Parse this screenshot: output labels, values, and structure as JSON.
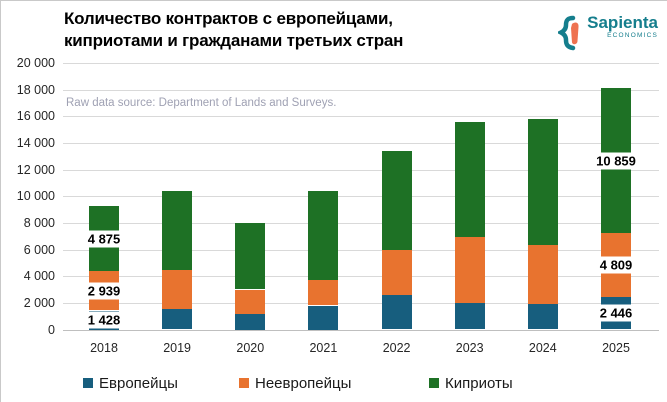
{
  "title": {
    "line1": "Количество контрактов с европейцами,",
    "line2": "киприотами и гражданами третьих стран"
  },
  "logo": {
    "name": "Sapienta",
    "subtitle": "ECONOMICS",
    "teal": "#157E8D",
    "orange": "#EE7250"
  },
  "source_note": "Raw data source: Department of Lands and Surveys.",
  "chart_data": {
    "type": "bar",
    "stacked": true,
    "title": "Количество контрактов с европейцами, киприотами и гражданами третьих стран",
    "categories": [
      "2018",
      "2019",
      "2020",
      "2021",
      "2022",
      "2023",
      "2024",
      "2025"
    ],
    "series": [
      {
        "name": "Европейцы",
        "color": "#175E7E",
        "values": [
          1428,
          1550,
          1200,
          1800,
          2600,
          2000,
          1900,
          2446
        ]
      },
      {
        "name": "Неевропейцы",
        "color": "#E8732F",
        "values": [
          2939,
          2900,
          1800,
          1900,
          3350,
          4925,
          4425,
          4809
        ]
      },
      {
        "name": "Киприоты",
        "color": "#1E7125",
        "values": [
          4875,
          5950,
          5000,
          6700,
          7450,
          8625,
          9475,
          10859
        ]
      }
    ],
    "totals": [
      9242,
      10400,
      8000,
      10400,
      13400,
      15550,
      15800,
      18114
    ],
    "ylim": [
      0,
      20000
    ],
    "ytick_step": 2000,
    "ytick_labels": [
      "0",
      "2 000",
      "4 000",
      "6 000",
      "8 000",
      "10 000",
      "12 000",
      "14 000",
      "16 000",
      "18 000",
      "20 000"
    ],
    "grid": "horizontal",
    "legend_position": "bottom",
    "annotations": [
      {
        "category": "2018",
        "labels": [
          "1 428",
          "2 939",
          "4 875"
        ]
      },
      {
        "category": "2025",
        "labels": [
          "2 446",
          "4 809",
          "10 859"
        ]
      }
    ]
  }
}
